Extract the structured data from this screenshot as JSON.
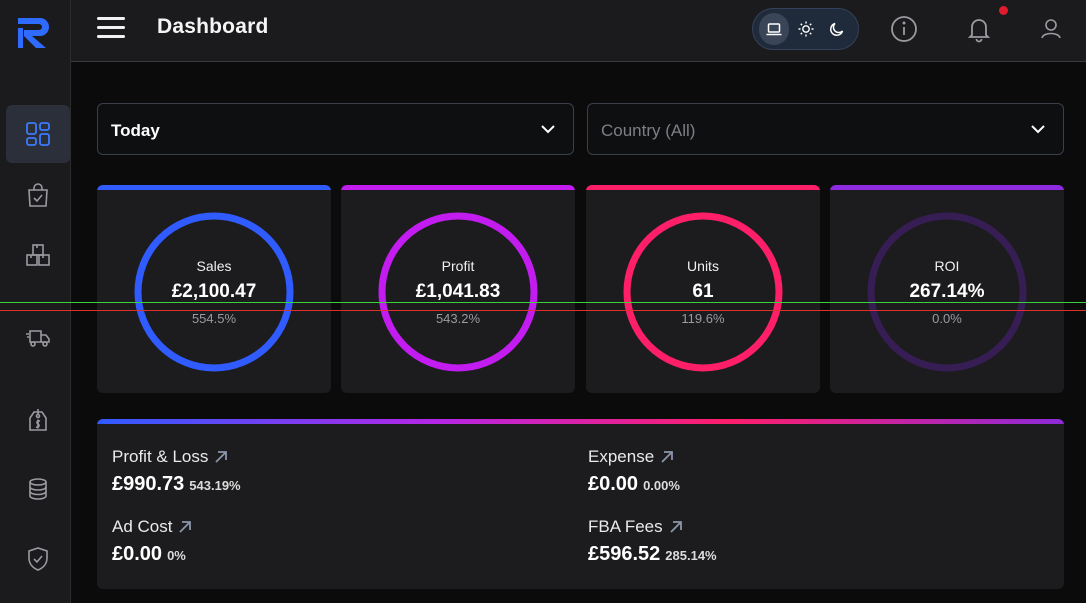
{
  "header": {
    "title": "Dashboard"
  },
  "theme": {
    "options": [
      "laptop-icon",
      "sun-icon",
      "moon-icon"
    ],
    "active": "system"
  },
  "filters": {
    "period": {
      "value": "Today"
    },
    "country": {
      "value": "Country (All)"
    }
  },
  "cards": [
    {
      "label": "Sales",
      "value": "£2,100.47",
      "pct": "554.5%",
      "color": "#2f5bff",
      "progress": 1.0
    },
    {
      "label": "Profit",
      "value": "£1,041.83",
      "pct": "543.2%",
      "color": "#c31cf0",
      "progress": 1.0
    },
    {
      "label": "Units",
      "value": "61",
      "pct": "119.6%",
      "color": "#ff1f68",
      "progress": 1.0
    },
    {
      "label": "ROI",
      "value": "267.14%",
      "pct": "0.0%",
      "color": "#8e2ae0",
      "progress": 0.0
    }
  ],
  "summary": {
    "profit_loss": {
      "title": "Profit & Loss",
      "value": "£990.73",
      "pct": "543.19%"
    },
    "expense": {
      "title": "Expense",
      "value": "£0.00",
      "pct": "0.00%"
    },
    "ad_cost": {
      "title": "Ad Cost",
      "value": "£0.00",
      "pct": "0%"
    },
    "fba_fees": {
      "title": "FBA Fees",
      "value": "£596.52",
      "pct": "285.14%"
    }
  },
  "colors": {
    "accent": "#2f6bff",
    "notification": "#e01c2c"
  }
}
